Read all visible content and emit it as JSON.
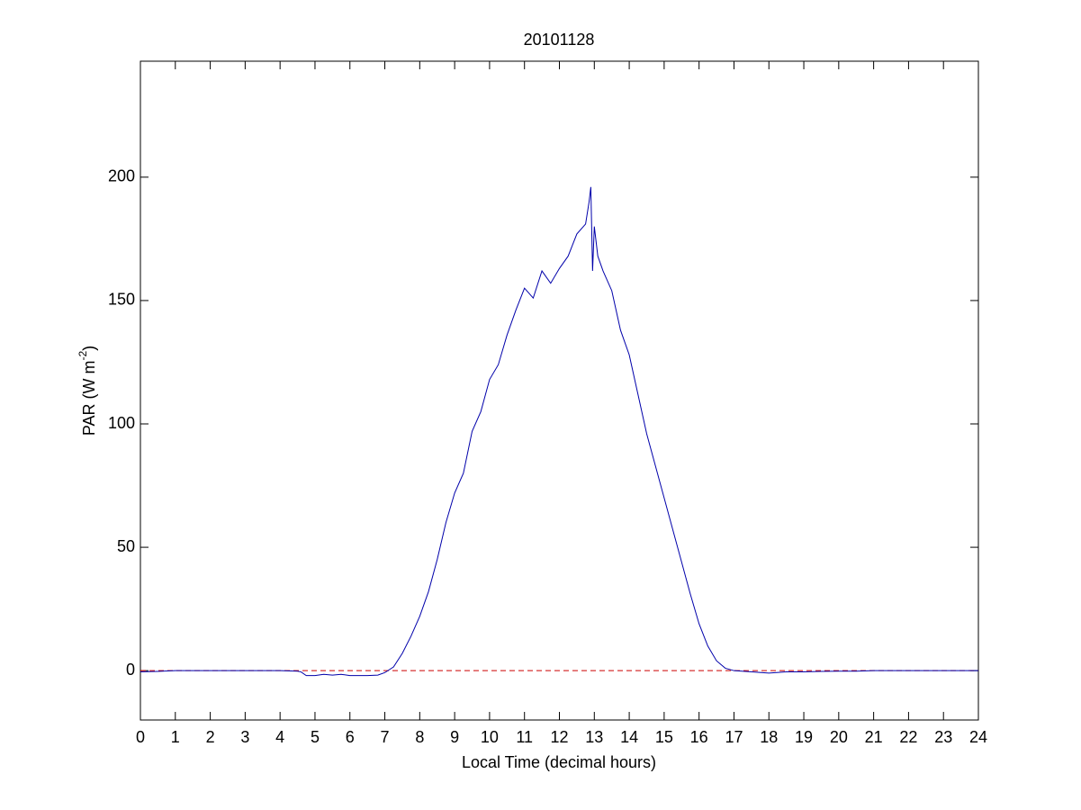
{
  "chart_data": {
    "type": "line",
    "title": "20101128",
    "xlabel": "Local Time (decimal hours)",
    "ylabel": {
      "text": "PAR (W m",
      "superscript": "-2",
      "suffix": ")"
    },
    "xlim": [
      0,
      24
    ],
    "xticks": [
      0,
      1,
      2,
      3,
      4,
      5,
      6,
      7,
      8,
      9,
      10,
      11,
      12,
      13,
      14,
      15,
      16,
      17,
      18,
      19,
      20,
      21,
      22,
      23,
      24
    ],
    "ylim": [
      -20,
      247
    ],
    "yticks": [
      0,
      50,
      100,
      150,
      200
    ],
    "reference_line": {
      "value": 0,
      "color": "#cc0000",
      "style": "dashed"
    },
    "series": [
      {
        "color": "#0000aa",
        "x": [
          0,
          0.5,
          1,
          1.5,
          2,
          2.5,
          3,
          3.5,
          4,
          4.5,
          4.6,
          4.75,
          5,
          5.25,
          5.5,
          5.75,
          6,
          6.5,
          6.8,
          7,
          7.25,
          7.5,
          7.75,
          8,
          8.25,
          8.5,
          8.75,
          9,
          9.25,
          9.5,
          9.75,
          10,
          10.25,
          10.5,
          10.75,
          11,
          11.25,
          11.5,
          11.75,
          12,
          12.25,
          12.5,
          12.75,
          12.85,
          12.9,
          12.95,
          13,
          13.1,
          13.25,
          13.5,
          13.75,
          14,
          14.25,
          14.5,
          14.75,
          15,
          15.25,
          15.5,
          15.75,
          16,
          16.25,
          16.5,
          16.75,
          17,
          17.5,
          18,
          18.5,
          19,
          19.5,
          20,
          20.5,
          21,
          21.5,
          22,
          22.5,
          23,
          23.5,
          24
        ],
        "values": [
          -0.5,
          -0.3,
          0,
          0,
          0,
          0,
          0,
          0,
          0,
          -0.2,
          -0.5,
          -2,
          -2,
          -1.5,
          -1.8,
          -1.5,
          -2,
          -2,
          -1.8,
          -0.8,
          1.5,
          7,
          14,
          22,
          32,
          45,
          60,
          72,
          80,
          97,
          105,
          118,
          124,
          136,
          146,
          155,
          151,
          162,
          157,
          163,
          168,
          177,
          181,
          190,
          196,
          162,
          180,
          168,
          162,
          154,
          138,
          128,
          112,
          96,
          83,
          70,
          57,
          44,
          31,
          19,
          10,
          4,
          1,
          0,
          -0.5,
          -1,
          -0.5,
          -0.5,
          -0.3,
          -0.2,
          -0.2,
          0,
          0,
          0,
          0,
          0,
          0,
          0
        ]
      }
    ]
  }
}
